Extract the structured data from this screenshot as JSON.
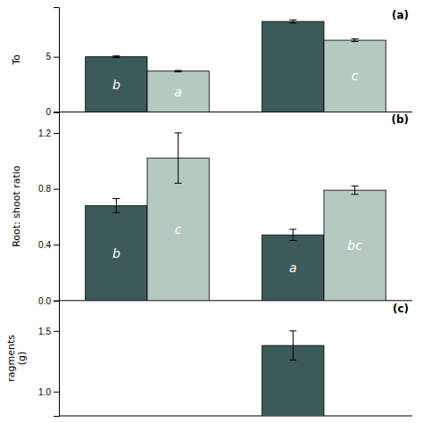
{
  "chart_data": [
    {
      "type": "bar",
      "title": "(a)",
      "ylabel": "To",
      "categories": [
        null,
        null
      ],
      "series": [
        {
          "color": "#3d5a5a",
          "values": [
            5.0,
            8.2
          ],
          "errors": [
            0.08,
            0.15
          ],
          "annotations": [
            "b",
            null
          ]
        },
        {
          "color": "#b5c9c0",
          "values": [
            3.7,
            6.5
          ],
          "errors": [
            0.06,
            0.12
          ],
          "annotations": [
            "a",
            "c"
          ]
        }
      ],
      "ylim": [
        0,
        9.5
      ],
      "yticks": [
        0,
        5
      ],
      "tick_labels": "y"
    },
    {
      "type": "bar",
      "title": "(b)",
      "ylabel": "Root: shoot ratio",
      "categories": [
        null,
        null
      ],
      "series": [
        {
          "color": "#3d5a5a",
          "values": [
            0.68,
            0.47
          ],
          "errors": [
            0.05,
            0.04
          ],
          "annotations": [
            "b",
            "a"
          ]
        },
        {
          "color": "#b5c9c0",
          "values": [
            1.02,
            0.79
          ],
          "errors": [
            0.18,
            0.03
          ],
          "annotations": [
            "c",
            "bc"
          ]
        }
      ],
      "ylim": [
        0.0,
        1.35
      ],
      "yticks": [
        {
          "value": 0.0,
          "label": "0.0"
        },
        0.4,
        0.8,
        1.2
      ],
      "tick_labels": "y"
    },
    {
      "type": "bar",
      "title": "(c)",
      "ylabel": "ragments\n(g)",
      "categories": [
        null,
        null
      ],
      "series": [
        {
          "color": "#3d5a5a",
          "values": [
            null,
            1.38
          ],
          "errors": [
            null,
            0.12
          ]
        }
      ],
      "ylim": [
        0.8,
        1.75
      ],
      "yticks": [
        {
          "value": 1.0,
          "label": "1.0"
        },
        1.5
      ],
      "tick_labels": "y"
    }
  ]
}
